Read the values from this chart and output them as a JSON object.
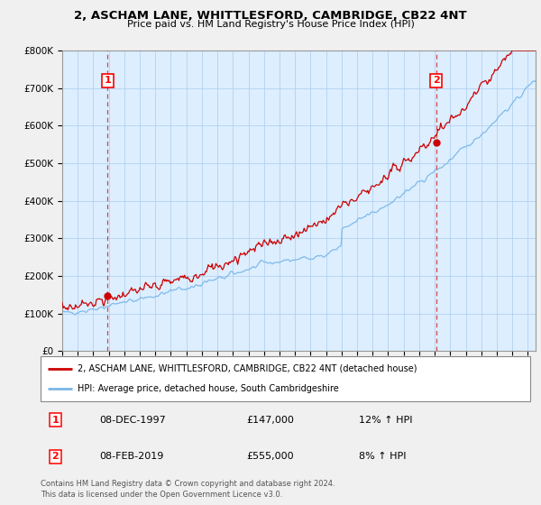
{
  "title": "2, ASCHAM LANE, WHITTLESFORD, CAMBRIDGE, CB22 4NT",
  "subtitle": "Price paid vs. HM Land Registry's House Price Index (HPI)",
  "ylabel_ticks": [
    "£0",
    "£100K",
    "£200K",
    "£300K",
    "£400K",
    "£500K",
    "£600K",
    "£700K",
    "£800K"
  ],
  "ylim": [
    0,
    800000
  ],
  "xlim_start": 1995.0,
  "xlim_end": 2025.5,
  "sale1_x": 1997.92,
  "sale1_y": 147000,
  "sale1_label": "1",
  "sale2_x": 2019.1,
  "sale2_y": 555000,
  "sale2_label": "2",
  "legend_line1": "2, ASCHAM LANE, WHITTLESFORD, CAMBRIDGE, CB22 4NT (detached house)",
  "legend_line2": "HPI: Average price, detached house, South Cambridgeshire",
  "table_row1": [
    "1",
    "08-DEC-1997",
    "£147,000",
    "12% ↑ HPI"
  ],
  "table_row2": [
    "2",
    "08-FEB-2019",
    "£555,000",
    "8% ↑ HPI"
  ],
  "footnote": "Contains HM Land Registry data © Crown copyright and database right 2024.\nThis data is licensed under the Open Government Licence v3.0.",
  "hpi_color": "#7ab8e8",
  "price_color": "#cc0000",
  "dashed_color": "#cc0000",
  "chart_bg_color": "#ddeeff",
  "background_color": "#f0f0f0",
  "grid_color": "#aaccee",
  "legend_bg": "#ffffff"
}
